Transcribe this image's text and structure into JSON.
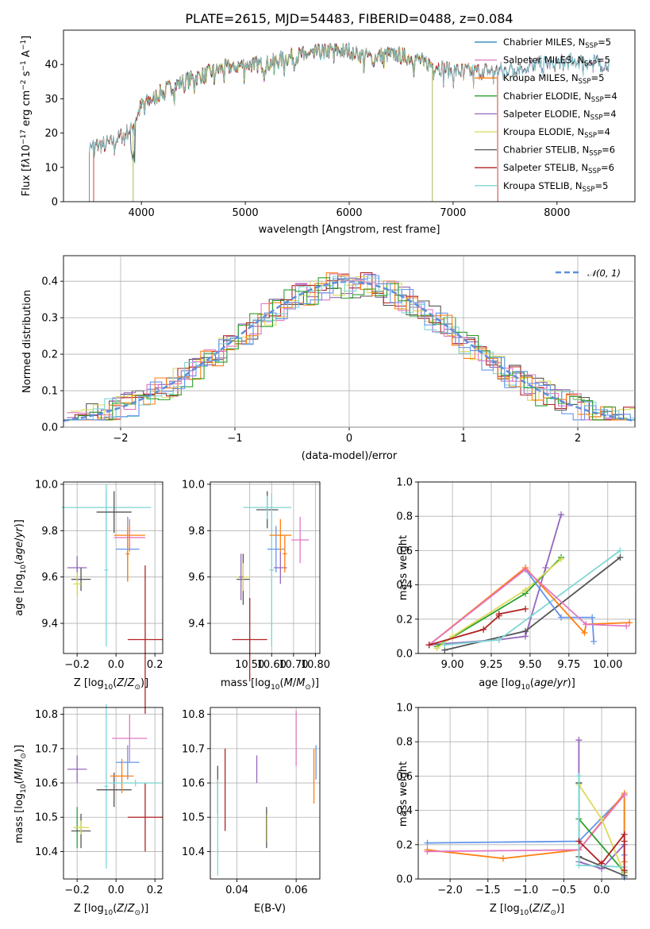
{
  "chart_data": [
    {
      "id": "spectrum",
      "type": "line",
      "title": "PLATE=2615, MJD=54483, FIBERID=0488, z=0.084",
      "xlabel": "wavelength [Angstrom, rest frame]",
      "ylabel": "Flux [f_λ10^-17 erg cm^-2 s^-1 A^-1]",
      "xlim": [
        3250,
        8750
      ],
      "ylim": [
        0,
        50
      ],
      "xticks": [
        4000,
        5000,
        6000,
        7000,
        8000
      ],
      "yticks": [
        0,
        10,
        20,
        30,
        40
      ],
      "continuum": [
        [
          3500,
          16
        ],
        [
          3700,
          17
        ],
        [
          3900,
          21
        ],
        [
          4000,
          28
        ],
        [
          4200,
          32
        ],
        [
          4400,
          35
        ],
        [
          4600,
          37
        ],
        [
          4800,
          39
        ],
        [
          5000,
          40
        ],
        [
          5200,
          40
        ],
        [
          5400,
          42
        ],
        [
          5600,
          43
        ],
        [
          5800,
          44
        ],
        [
          6000,
          44
        ],
        [
          6200,
          42
        ],
        [
          6400,
          43
        ],
        [
          6600,
          42
        ],
        [
          6800,
          40
        ],
        [
          7000,
          38
        ],
        [
          7400,
          38
        ],
        [
          7800,
          40
        ],
        [
          8200,
          41
        ],
        [
          8500,
          40
        ]
      ],
      "series": [
        {
          "name": "Chabrier MILES, N_SSP=5",
          "color": "#1f77b4",
          "start": 3500,
          "end": 8500,
          "drop": null
        },
        {
          "name": "Salpeter MILES, N_SSP=5",
          "color": "#e377c2",
          "start": 3500,
          "end": 8500,
          "drop": null
        },
        {
          "name": "Kroupa MILES, N_SSP=5",
          "color": "#ff7f0e",
          "start": 3540,
          "end": 7430,
          "drop": "both"
        },
        {
          "name": "Chabrier ELODIE, N_SSP=4",
          "color": "#2ca02c",
          "start": 3920,
          "end": 6800,
          "drop": "both"
        },
        {
          "name": "Salpeter ELODIE, N_SSP=4",
          "color": "#9467bd",
          "start": 3920,
          "end": 6800,
          "drop": "both"
        },
        {
          "name": "Kroupa ELODIE, N_SSP=4",
          "color": "#dbdb5b",
          "start": 3920,
          "end": 6800,
          "drop": "both"
        },
        {
          "name": "Chabrier STELIB, N_SSP=6",
          "color": "#555555",
          "start": 3500,
          "end": 8500,
          "drop": "start"
        },
        {
          "name": "Salpeter STELIB, N_SSP=6",
          "color": "#b22222",
          "start": 3540,
          "end": 7430,
          "drop": "both"
        },
        {
          "name": "Kroupa STELIB, N_SSP=5",
          "color": "#7fd6d6",
          "start": 3500,
          "end": 8500,
          "drop": null
        }
      ]
    },
    {
      "id": "residuals",
      "type": "histogram",
      "xlabel": "(data-model)/error",
      "ylabel": "Normed distribution",
      "xlim": [
        -2.5,
        2.5
      ],
      "ylim": [
        0,
        0.47
      ],
      "xticks": [
        -2,
        -1,
        0,
        1,
        2
      ],
      "yticks": [
        0.0,
        0.1,
        0.2,
        0.3,
        0.4
      ],
      "reference": {
        "name": "N(0,1)",
        "color": "#5b8fd9"
      },
      "bin_width": 0.1,
      "series_colors": [
        "#555555",
        "#9467bd",
        "#dbdb5b",
        "#b22222",
        "#e377c2",
        "#7fd6d6",
        "#ff7f0e",
        "#2ca02c",
        "#6495ed"
      ]
    },
    {
      "id": "age-vs-Z",
      "type": "errorbar",
      "xlabel": "Z [log10(Z/Z⊙)]",
      "ylabel": "age  [log10(age/yr)]",
      "xlim": [
        -0.27,
        0.24
      ],
      "ylim": [
        9.27,
        10.01
      ],
      "xticks": [
        -0.2,
        0.0,
        0.2
      ],
      "yticks": [
        9.4,
        9.6,
        9.8,
        10.0
      ],
      "points": [
        {
          "x": -0.2,
          "y": 9.59,
          "xerr": 0.02,
          "yerr": 0.07,
          "color": "#9467bd"
        },
        {
          "x": -0.2,
          "y": 9.64,
          "xerr": 0.05,
          "yerr": 0.05,
          "color": "#9467bd"
        },
        {
          "x": -0.18,
          "y": 9.59,
          "xerr": 0.05,
          "yerr": 0.05,
          "color": "#555555"
        },
        {
          "x": -0.2,
          "y": 9.57,
          "xerr": 0.02,
          "yerr": 0.05,
          "color": "#dbdb5b"
        },
        {
          "x": -0.05,
          "y": 9.63,
          "xerr": 0.01,
          "yerr": 0.33,
          "color": "#7fd6d6"
        },
        {
          "x": -0.05,
          "y": 9.9,
          "xerr": 0.23,
          "yerr": 0.1,
          "color": "#7fd6d6"
        },
        {
          "x": -0.01,
          "y": 9.88,
          "xerr": 0.09,
          "yerr": 0.09,
          "color": "#555555"
        },
        {
          "x": 0.07,
          "y": 9.78,
          "xerr": 0.08,
          "yerr": 0.07,
          "color": "#ff7f0e"
        },
        {
          "x": 0.07,
          "y": 9.77,
          "xerr": 0.08,
          "yerr": 0.05,
          "color": "#e377c2"
        },
        {
          "x": 0.06,
          "y": 9.72,
          "xerr": 0.06,
          "yerr": 0.14,
          "color": "#6495ed"
        },
        {
          "x": 0.15,
          "y": 9.33,
          "xerr": 0.09,
          "yerr": 0.32,
          "color": "#b22222"
        },
        {
          "x": 0.06,
          "y": 9.7,
          "xerr": 0.01,
          "yerr": 0.12,
          "color": "#ff7f0e"
        }
      ]
    },
    {
      "id": "age-vs-mass",
      "type": "errorbar",
      "xlabel": "mass [log10(M/M⊙)]",
      "ylabel": "",
      "xlim": [
        10.32,
        10.82
      ],
      "ylim": [
        9.27,
        10.01
      ],
      "xticks": [
        10.5,
        10.6,
        10.7,
        10.8
      ],
      "yticks": [
        9.4,
        9.6,
        9.8,
        10.0
      ],
      "points": [
        {
          "x": 10.47,
          "y": 9.59,
          "xerr": 0.03,
          "yerr": 0.11,
          "color": "#555555"
        },
        {
          "x": 10.47,
          "y": 9.6,
          "xerr": 0.03,
          "yerr": 0.06,
          "color": "#dbdb5b"
        },
        {
          "x": 10.46,
          "y": 9.6,
          "xerr": 0.01,
          "yerr": 0.1,
          "color": "#9467bd"
        },
        {
          "x": 10.5,
          "y": 9.33,
          "xerr": 0.08,
          "yerr": 0.18,
          "color": "#b22222"
        },
        {
          "x": 10.58,
          "y": 9.89,
          "xerr": 0.05,
          "yerr": 0.08,
          "color": "#555555"
        },
        {
          "x": 10.58,
          "y": 9.9,
          "xerr": 0.11,
          "yerr": 0.05,
          "color": "#7fd6d6"
        },
        {
          "x": 10.6,
          "y": 9.63,
          "xerr": 0.01,
          "yerr": 0.33,
          "color": "#7fd6d6"
        },
        {
          "x": 10.62,
          "y": 9.72,
          "xerr": 0.04,
          "yerr": 0.1,
          "color": "#6495ed"
        },
        {
          "x": 10.64,
          "y": 9.78,
          "xerr": 0.05,
          "yerr": 0.07,
          "color": "#ff7f0e"
        },
        {
          "x": 10.64,
          "y": 9.64,
          "xerr": 0.03,
          "yerr": 0.07,
          "color": "#9467bd"
        },
        {
          "x": 10.73,
          "y": 9.76,
          "xerr": 0.04,
          "yerr": 0.1,
          "color": "#e377c2"
        },
        {
          "x": 10.66,
          "y": 9.7,
          "xerr": 0.01,
          "yerr": 0.08,
          "color": "#ff7f0e"
        }
      ]
    },
    {
      "id": "massweight-vs-age",
      "type": "line",
      "xlabel": "age  [log10(age/yr)]",
      "ylabel": "mass weight",
      "xlim": [
        8.78,
        10.18
      ],
      "ylim": [
        0,
        1.0
      ],
      "xticks": [
        9.0,
        9.25,
        9.5,
        9.75,
        10.0
      ],
      "yticks": [
        0.0,
        0.2,
        0.4,
        0.6,
        0.8,
        1.0
      ],
      "series": [
        {
          "color": "#9467bd",
          "pts": [
            [
              8.85,
              0.05
            ],
            [
              9.3,
              0.08
            ],
            [
              9.47,
              0.1
            ],
            [
              9.6,
              0.5
            ],
            [
              9.7,
              0.81
            ]
          ]
        },
        {
          "color": "#2ca02c",
          "pts": [
            [
              8.9,
              0.04
            ],
            [
              9.47,
              0.35
            ],
            [
              9.7,
              0.56
            ]
          ]
        },
        {
          "color": "#dbdb5b",
          "pts": [
            [
              8.9,
              0.03
            ],
            [
              9.0,
              0.1
            ],
            [
              9.47,
              0.37
            ],
            [
              9.7,
              0.55
            ]
          ]
        },
        {
          "color": "#555555",
          "pts": [
            [
              8.95,
              0.02
            ],
            [
              9.47,
              0.13
            ],
            [
              10.08,
              0.56
            ]
          ]
        },
        {
          "color": "#7fd6d6",
          "pts": [
            [
              8.95,
              0.05
            ],
            [
              9.3,
              0.08
            ],
            [
              10.08,
              0.6
            ]
          ]
        },
        {
          "color": "#6495ed",
          "pts": [
            [
              8.85,
              0.05
            ],
            [
              9.47,
              0.49
            ],
            [
              9.7,
              0.21
            ],
            [
              9.9,
              0.21
            ],
            [
              9.91,
              0.07
            ]
          ]
        },
        {
          "color": "#ff7f0e",
          "pts": [
            [
              8.85,
              0.05
            ],
            [
              9.47,
              0.5
            ],
            [
              9.85,
              0.12
            ],
            [
              9.86,
              0.17
            ],
            [
              10.14,
              0.18
            ]
          ]
        },
        {
          "color": "#e377c2",
          "pts": [
            [
              8.85,
              0.05
            ],
            [
              9.47,
              0.49
            ],
            [
              9.86,
              0.17
            ],
            [
              10.12,
              0.16
            ]
          ]
        },
        {
          "color": "#b22222",
          "pts": [
            [
              8.85,
              0.05
            ],
            [
              9.2,
              0.14
            ],
            [
              9.3,
              0.22
            ],
            [
              9.3,
              0.23
            ],
            [
              9.47,
              0.26
            ]
          ]
        }
      ]
    },
    {
      "id": "mass-vs-Z",
      "type": "errorbar",
      "xlabel": "Z [log10(Z/Z⊙)]",
      "ylabel": "mass [log10(M/M⊙)]",
      "xlim": [
        -0.27,
        0.24
      ],
      "ylim": [
        10.32,
        10.82
      ],
      "xticks": [
        -0.2,
        0.0,
        0.2
      ],
      "yticks": [
        10.4,
        10.5,
        10.6,
        10.7,
        10.8
      ],
      "points": [
        {
          "x": -0.2,
          "y": 10.64,
          "xerr": 0.05,
          "yerr": 0.04,
          "color": "#9467bd"
        },
        {
          "x": -0.2,
          "y": 10.47,
          "xerr": 0.01,
          "yerr": 0.06,
          "color": "#2ca02c"
        },
        {
          "x": -0.18,
          "y": 10.46,
          "xerr": 0.05,
          "yerr": 0.05,
          "color": "#555555"
        },
        {
          "x": -0.18,
          "y": 10.47,
          "xerr": 0.04,
          "yerr": 0.02,
          "color": "#dbdb5b"
        },
        {
          "x": -0.05,
          "y": 10.59,
          "xerr": 0.01,
          "yerr": 0.24,
          "color": "#7fd6d6"
        },
        {
          "x": -0.01,
          "y": 10.58,
          "xerr": 0.09,
          "yerr": 0.05,
          "color": "#555555"
        },
        {
          "x": 0.03,
          "y": 10.62,
          "xerr": 0.06,
          "yerr": 0.05,
          "color": "#ff7f0e"
        },
        {
          "x": 0.06,
          "y": 10.66,
          "xerr": 0.06,
          "yerr": 0.05,
          "color": "#6495ed"
        },
        {
          "x": 0.07,
          "y": 10.73,
          "xerr": 0.09,
          "yerr": 0.07,
          "color": "#e377c2"
        },
        {
          "x": 0.15,
          "y": 10.5,
          "xerr": 0.09,
          "yerr": 0.1,
          "color": "#b22222"
        },
        {
          "x": 0.1,
          "y": 10.6,
          "xerr": 0.13,
          "yerr": 0.01,
          "color": "#7fd6d6"
        }
      ]
    },
    {
      "id": "mass-vs-ebv",
      "type": "errorbar",
      "xlabel": "E(B-V)",
      "ylabel": "",
      "xlim": [
        0.031,
        0.068
      ],
      "ylim": [
        10.32,
        10.82
      ],
      "xticks": [
        0.04,
        0.06
      ],
      "yticks": [
        10.4,
        10.5,
        10.6,
        10.7,
        10.8
      ],
      "points": [
        {
          "x": 0.0335,
          "y": 10.58,
          "xerr": 0,
          "yerr": 0.07,
          "color": "#555555"
        },
        {
          "x": 0.0335,
          "y": 10.47,
          "xerr": 0,
          "yerr": 0.14,
          "color": "#7fd6d6"
        },
        {
          "x": 0.036,
          "y": 10.58,
          "xerr": 0,
          "yerr": 0.12,
          "color": "#b22222"
        },
        {
          "x": 0.0467,
          "y": 10.64,
          "xerr": 0,
          "yerr": 0.04,
          "color": "#9467bd"
        },
        {
          "x": 0.05,
          "y": 10.47,
          "xerr": 0,
          "yerr": 0.06,
          "color": "#555555"
        },
        {
          "x": 0.0502,
          "y": 10.47,
          "xerr": 0,
          "yerr": 0.04,
          "color": "#dbdb5b"
        },
        {
          "x": 0.06,
          "y": 10.73,
          "xerr": 0,
          "yerr": 0.08,
          "color": "#e377c2"
        },
        {
          "x": 0.066,
          "y": 10.62,
          "xerr": 0,
          "yerr": 0.08,
          "color": "#ff7f0e"
        },
        {
          "x": 0.0667,
          "y": 10.66,
          "xerr": 0,
          "yerr": 0.05,
          "color": "#6495ed"
        }
      ]
    },
    {
      "id": "massweight-vs-Z",
      "type": "line",
      "xlabel": "Z [log10(Z/Z⊙)]",
      "ylabel": "mass weight",
      "xlim": [
        -2.42,
        0.45
      ],
      "ylim": [
        0,
        1.0
      ],
      "xticks": [
        -2.0,
        -1.5,
        -1.0,
        -0.5,
        0.0
      ],
      "yticks": [
        0.0,
        0.2,
        0.4,
        0.6,
        0.8,
        1.0
      ],
      "series": [
        {
          "color": "#6495ed",
          "pts": [
            [
              -2.3,
              0.21
            ],
            [
              -0.3,
              0.22
            ],
            [
              0.3,
              0.49
            ],
            [
              0.3,
              0.14
            ],
            [
              0.3,
              0.01
            ]
          ]
        },
        {
          "color": "#ff7f0e",
          "pts": [
            [
              -2.3,
              0.17
            ],
            [
              -1.3,
              0.12
            ],
            [
              -0.3,
              0.17
            ],
            [
              0.3,
              0.5
            ],
            [
              0.3,
              0.1
            ]
          ]
        },
        {
          "color": "#e377c2",
          "pts": [
            [
              -2.3,
              0.16
            ],
            [
              -0.3,
              0.17
            ],
            [
              0.3,
              0.49
            ]
          ]
        },
        {
          "color": "#9467bd",
          "pts": [
            [
              -0.3,
              0.81
            ],
            [
              -0.3,
              0.1
            ],
            [
              0.0,
              0.06
            ],
            [
              0.3,
              0.2
            ]
          ]
        },
        {
          "color": "#2ca02c",
          "pts": [
            [
              -0.3,
              0.56
            ],
            [
              -0.3,
              0.35
            ],
            [
              0.3,
              0.04
            ]
          ]
        },
        {
          "color": "#dbdb5b",
          "pts": [
            [
              -0.3,
              0.55
            ],
            [
              0.0,
              0.35
            ],
            [
              0.3,
              0.03
            ]
          ]
        },
        {
          "color": "#555555",
          "pts": [
            [
              -0.3,
              0.56
            ],
            [
              -0.3,
              0.13
            ],
            [
              0.3,
              0.02
            ]
          ]
        },
        {
          "color": "#7fd6d6",
          "pts": [
            [
              -0.3,
              0.6
            ],
            [
              -0.3,
              0.08
            ],
            [
              0.3,
              0.07
            ]
          ]
        },
        {
          "color": "#b22222",
          "pts": [
            [
              -0.3,
              0.22
            ],
            [
              0.0,
              0.09
            ],
            [
              0.3,
              0.26
            ],
            [
              0.3,
              0.22
            ],
            [
              0.3,
              0.05
            ]
          ]
        }
      ]
    }
  ]
}
